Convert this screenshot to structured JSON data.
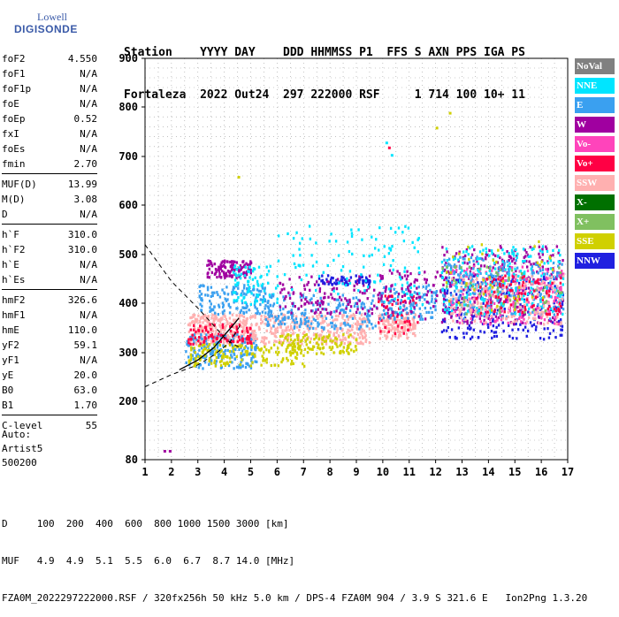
{
  "logo": {
    "line1": "Lowell",
    "line2": "DIGISONDE"
  },
  "header": {
    "row1": "Station    YYYY DAY    DDD HHMMSS P1  FFS S AXN PPS IGA PS",
    "row2": "Fortaleza  2022 Out24  297 222000 RSF     1 714 100 10+ 11"
  },
  "params": {
    "group1": [
      {
        "name": "foF2",
        "value": "4.550"
      },
      {
        "name": "foF1",
        "value": "N/A"
      },
      {
        "name": "foF1p",
        "value": "N/A"
      },
      {
        "name": "foE",
        "value": "N/A"
      },
      {
        "name": "foEp",
        "value": "0.52"
      },
      {
        "name": "fxI",
        "value": "N/A"
      },
      {
        "name": "foEs",
        "value": "N/A"
      },
      {
        "name": "fmin",
        "value": "2.70"
      }
    ],
    "group2": [
      {
        "name": "MUF(D)",
        "value": "13.99"
      },
      {
        "name": "M(D)",
        "value": "3.08"
      },
      {
        "name": "D",
        "value": "N/A"
      }
    ],
    "group3": [
      {
        "name": "h`F",
        "value": "310.0"
      },
      {
        "name": "h`F2",
        "value": "310.0"
      },
      {
        "name": "h`E",
        "value": "N/A"
      },
      {
        "name": "h`Es",
        "value": "N/A"
      }
    ],
    "group4": [
      {
        "name": "hmF2",
        "value": "326.6"
      },
      {
        "name": "hmF1",
        "value": "N/A"
      },
      {
        "name": "hmE",
        "value": "110.0"
      },
      {
        "name": "yF2",
        "value": "59.1"
      },
      {
        "name": "yF1",
        "value": "N/A"
      },
      {
        "name": "yE",
        "value": "20.0"
      },
      {
        "name": "B0",
        "value": "63.0"
      },
      {
        "name": "B1",
        "value": "1.70"
      }
    ],
    "group5": [
      {
        "name": "C-level",
        "value": "55"
      }
    ]
  },
  "auto": {
    "line1": "Auto:",
    "line2": "Artist5",
    "line3": "500200"
  },
  "legend": [
    {
      "label": "NoVal",
      "color": "#808080"
    },
    {
      "label": "NNE",
      "color": "#00e5ff"
    },
    {
      "label": "E",
      "color": "#3aa0f0"
    },
    {
      "label": "W",
      "color": "#a000a0"
    },
    {
      "label": "Vo-",
      "color": "#ff44bb"
    },
    {
      "label": "Vo+",
      "color": "#ff0044"
    },
    {
      "label": "SSW",
      "color": "#ffb0b0"
    },
    {
      "label": "X-",
      "color": "#007000"
    },
    {
      "label": "X+",
      "color": "#80c060"
    },
    {
      "label": "SSE",
      "color": "#d0d000"
    },
    {
      "label": "NNW",
      "color": "#2020e0"
    }
  ],
  "footer": {
    "line1": "D     100  200  400  600  800 1000 1500 3000 [km]",
    "line2": "MUF   4.9  4.9  5.1  5.5  6.0  6.7  8.7 14.0 [MHz]",
    "line3": "FZA0M_2022297222000.RSF / 320fx256h 50 kHz 5.0 km / DPS-4 FZA0M 904 / 3.9 S 321.6 E   Ion2Png 1.3.20"
  },
  "chart_data": {
    "type": "scatter",
    "x_ticks": [
      "1",
      "2",
      "3",
      "4",
      "5",
      "6",
      "7",
      "8",
      "9",
      "10",
      "11",
      "12",
      "13",
      "14",
      "15",
      "16",
      "17"
    ],
    "y_ticks": [
      "80",
      "200",
      "300",
      "400",
      "500",
      "600",
      "700",
      "800",
      "900"
    ],
    "xlim": [
      1,
      17
    ],
    "ylim": [
      80,
      900
    ],
    "y_tick_values": [
      80,
      200,
      300,
      400,
      500,
      600,
      700,
      800,
      900
    ],
    "grid": true,
    "legend_position": "right",
    "clusters": [
      {
        "series": "SSW",
        "x": [
          2.6,
          5.0
        ],
        "y": [
          320,
          380
        ],
        "n": 260
      },
      {
        "series": "E",
        "x": [
          2.5,
          5.2
        ],
        "y": [
          270,
          340
        ],
        "n": 200
      },
      {
        "series": "SSE",
        "x": [
          2.6,
          7.0
        ],
        "y": [
          275,
          320
        ],
        "n": 160
      },
      {
        "series": "W",
        "x": [
          3.3,
          5.0
        ],
        "y": [
          455,
          490
        ],
        "n": 120
      },
      {
        "series": "E",
        "x": [
          3.0,
          5.8
        ],
        "y": [
          380,
          440
        ],
        "n": 140
      },
      {
        "series": "Vo+",
        "x": [
          2.6,
          5.0
        ],
        "y": [
          320,
          360
        ],
        "n": 90
      },
      {
        "series": "NNE",
        "x": [
          4.3,
          6.0
        ],
        "y": [
          400,
          480
        ],
        "n": 80
      },
      {
        "series": "SSW",
        "x": [
          5.0,
          9.5
        ],
        "y": [
          320,
          380
        ],
        "n": 300
      },
      {
        "series": "SSE",
        "x": [
          6.0,
          9.0
        ],
        "y": [
          300,
          340
        ],
        "n": 120
      },
      {
        "series": "E",
        "x": [
          5.5,
          9.8
        ],
        "y": [
          350,
          420
        ],
        "n": 180
      },
      {
        "series": "W",
        "x": [
          6.0,
          9.8
        ],
        "y": [
          380,
          460
        ],
        "n": 120
      },
      {
        "series": "NNW",
        "x": [
          7.5,
          9.5
        ],
        "y": [
          440,
          460
        ],
        "n": 60
      },
      {
        "series": "NNE",
        "x": [
          6.0,
          10.0
        ],
        "y": [
          420,
          560
        ],
        "n": 70
      },
      {
        "series": "SSW",
        "x": [
          9.8,
          11.2
        ],
        "y": [
          330,
          380
        ],
        "n": 120
      },
      {
        "series": "Vo+",
        "x": [
          9.8,
          11.3
        ],
        "y": [
          340,
          420
        ],
        "n": 60
      },
      {
        "series": "E",
        "x": [
          9.8,
          12.0
        ],
        "y": [
          370,
          440
        ],
        "n": 100
      },
      {
        "series": "W",
        "x": [
          9.8,
          12.2
        ],
        "y": [
          370,
          470
        ],
        "n": 90
      },
      {
        "series": "NNE",
        "x": [
          9.8,
          11.5
        ],
        "y": [
          380,
          560
        ],
        "n": 50
      },
      {
        "series": "NNW",
        "x": [
          12.2,
          16.8
        ],
        "y": [
          330,
          460
        ],
        "n": 260
      },
      {
        "series": "W",
        "x": [
          12.2,
          16.8
        ],
        "y": [
          360,
          520
        ],
        "n": 260
      },
      {
        "series": "Vo-",
        "x": [
          12.5,
          16.8
        ],
        "y": [
          360,
          480
        ],
        "n": 200
      },
      {
        "series": "E",
        "x": [
          12.2,
          16.8
        ],
        "y": [
          370,
          500
        ],
        "n": 220
      },
      {
        "series": "NNE",
        "x": [
          12.2,
          16.8
        ],
        "y": [
          380,
          520
        ],
        "n": 200
      },
      {
        "series": "SSW",
        "x": [
          12.5,
          16.8
        ],
        "y": [
          360,
          460
        ],
        "n": 180
      },
      {
        "series": "X+",
        "x": [
          12.0,
          16.8
        ],
        "y": [
          380,
          480
        ],
        "n": 60
      },
      {
        "series": "Vo+",
        "x": [
          13.5,
          16.8
        ],
        "y": [
          380,
          460
        ],
        "n": 80
      },
      {
        "series": "SSE",
        "x": [
          12.3,
          16.5
        ],
        "y": [
          380,
          540
        ],
        "n": 40
      }
    ],
    "outliers": [
      {
        "series": "W",
        "x": 1.7,
        "y": 100
      },
      {
        "series": "W",
        "x": 1.9,
        "y": 100
      },
      {
        "series": "NNE",
        "x": 10.1,
        "y": 730
      },
      {
        "series": "Vo+",
        "x": 10.2,
        "y": 720
      },
      {
        "series": "NNE",
        "x": 10.3,
        "y": 705
      },
      {
        "series": "SSE",
        "x": 12.5,
        "y": 790
      },
      {
        "series": "SSE",
        "x": 12.0,
        "y": 760
      },
      {
        "series": "SSE",
        "x": 4.5,
        "y": 660
      }
    ],
    "traces": [
      {
        "name": "dashed",
        "points": [
          [
            1,
            520
          ],
          [
            2,
            445
          ],
          [
            3,
            390
          ],
          [
            3.6,
            355
          ],
          [
            4.1,
            325
          ],
          [
            4.6,
            310
          ]
        ]
      },
      {
        "name": "dashed",
        "points": [
          [
            1,
            230
          ],
          [
            2,
            255
          ],
          [
            3,
            275
          ],
          [
            3.6,
            295
          ],
          [
            4.2,
            320
          ],
          [
            4.6,
            355
          ]
        ]
      },
      {
        "name": "profile",
        "points": [
          [
            2.3,
            265
          ],
          [
            3.0,
            285
          ],
          [
            3.6,
            310
          ],
          [
            4.0,
            335
          ],
          [
            4.4,
            360
          ],
          [
            4.55,
            370
          ]
        ]
      }
    ]
  }
}
